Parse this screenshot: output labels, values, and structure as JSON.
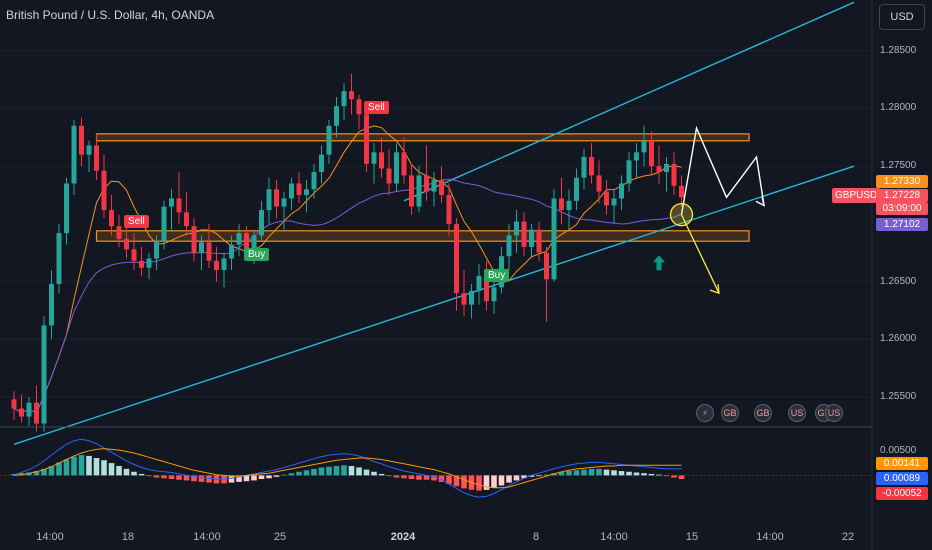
{
  "header": {
    "title": "British Pound / U.S. Dollar, 4h, OANDA",
    "currency": "USD"
  },
  "colors": {
    "background": "#131722",
    "up": "#26a69a",
    "down": "#f23645",
    "channel": "#29b6d6",
    "zone": "#f7931a",
    "ma_fast": "#f7931a",
    "ma_slow": "#7b5cd6",
    "macd_line": "#2962ff",
    "signal_line": "#ff9800"
  },
  "chart_data": {
    "type": "candlestick",
    "title": "British Pound / U.S. Dollar, 4h, OANDA",
    "symbol": "GBPUSD",
    "interval": "4h",
    "price_axis": {
      "ticks": [
        "1.28500",
        "1.28000",
        "1.27500",
        "1.26500",
        "1.26000",
        "1.25500"
      ],
      "ylim": [
        1.2524,
        1.2894
      ]
    },
    "time_axis": {
      "ticks": [
        {
          "label": "14:00",
          "bold": false
        },
        {
          "label": "18",
          "bold": false
        },
        {
          "label": "14:00",
          "bold": false
        },
        {
          "label": "25",
          "bold": false
        },
        {
          "label": "2024",
          "bold": true
        },
        {
          "label": "8",
          "bold": false
        },
        {
          "label": "14:00",
          "bold": false
        },
        {
          "label": "15",
          "bold": false
        },
        {
          "label": "14:00",
          "bold": false
        },
        {
          "label": "22",
          "bold": false
        }
      ]
    },
    "price_labels": {
      "symbol": "GBPUSD",
      "fast_ma": "1.27330",
      "last": "1.27228",
      "countdown": "03:09:00",
      "slow_ma": "1.27102"
    },
    "zones": [
      {
        "from": 1.2772,
        "to": 1.2778
      },
      {
        "from": 1.2685,
        "to": 1.2694
      }
    ],
    "channel": {
      "lower": [
        [
          0,
          1.2509
        ],
        [
          112,
          1.275
        ]
      ],
      "upper": [
        [
          52,
          1.272
        ],
        [
          112,
          1.2892
        ]
      ]
    },
    "signals": [
      {
        "label": "Sell",
        "index": 16,
        "price": 1.2702
      },
      {
        "label": "Buy",
        "index": 32,
        "price": 1.2673
      },
      {
        "label": "Sell",
        "index": 48,
        "price": 1.28
      },
      {
        "label": "Buy",
        "index": 64,
        "price": 1.2655
      }
    ],
    "projection": {
      "main": [
        [
          89,
          1.2708
        ],
        [
          91,
          1.2783
        ],
        [
          95,
          1.2723
        ],
        [
          99,
          1.2758
        ],
        [
          100,
          1.2716
        ]
      ],
      "alternate": [
        [
          89,
          1.2708
        ],
        [
          94,
          1.264
        ]
      ]
    },
    "events": [
      "⚡",
      "GB",
      "GB",
      "US",
      "GB",
      "US"
    ],
    "candles": [
      [
        1.2548,
        1.2555,
        1.253,
        1.254
      ],
      [
        1.254,
        1.2552,
        1.2528,
        1.2533
      ],
      [
        1.2533,
        1.255,
        1.2525,
        1.2545
      ],
      [
        1.2545,
        1.256,
        1.252,
        1.2527
      ],
      [
        1.2527,
        1.262,
        1.252,
        1.2612
      ],
      [
        1.2612,
        1.266,
        1.26,
        1.2648
      ],
      [
        1.2648,
        1.27,
        1.264,
        1.2692
      ],
      [
        1.2692,
        1.274,
        1.2682,
        1.2735
      ],
      [
        1.2735,
        1.279,
        1.2725,
        1.2785
      ],
      [
        1.2785,
        1.2792,
        1.275,
        1.276
      ],
      [
        1.276,
        1.2772,
        1.2745,
        1.2768
      ],
      [
        1.2768,
        1.2778,
        1.2738,
        1.2746
      ],
      [
        1.2746,
        1.276,
        1.2705,
        1.2712
      ],
      [
        1.2712,
        1.2725,
        1.269,
        1.2698
      ],
      [
        1.2698,
        1.2708,
        1.268,
        1.2687
      ],
      [
        1.2687,
        1.27,
        1.267,
        1.2678
      ],
      [
        1.2678,
        1.2692,
        1.266,
        1.2668
      ],
      [
        1.2668,
        1.268,
        1.2655,
        1.2662
      ],
      [
        1.2662,
        1.2675,
        1.2652,
        1.267
      ],
      [
        1.267,
        1.269,
        1.266,
        1.2685
      ],
      [
        1.2685,
        1.272,
        1.2678,
        1.2715
      ],
      [
        1.2715,
        1.273,
        1.2695,
        1.2722
      ],
      [
        1.2722,
        1.2745,
        1.27,
        1.271
      ],
      [
        1.271,
        1.2728,
        1.269,
        1.2698
      ],
      [
        1.2698,
        1.2705,
        1.2668,
        1.2675
      ],
      [
        1.2675,
        1.269,
        1.266,
        1.2684
      ],
      [
        1.2684,
        1.27,
        1.2662,
        1.2668
      ],
      [
        1.2668,
        1.268,
        1.265,
        1.266
      ],
      [
        1.266,
        1.2675,
        1.2645,
        1.267
      ],
      [
        1.267,
        1.269,
        1.266,
        1.2682
      ],
      [
        1.2682,
        1.27,
        1.2672,
        1.2692
      ],
      [
        1.2692,
        1.2698,
        1.2668,
        1.2675
      ],
      [
        1.2675,
        1.2695,
        1.2665,
        1.269
      ],
      [
        1.269,
        1.272,
        1.2685,
        1.2712
      ],
      [
        1.2712,
        1.274,
        1.27,
        1.273
      ],
      [
        1.273,
        1.2738,
        1.2705,
        1.2715
      ],
      [
        1.2715,
        1.2728,
        1.2695,
        1.2722
      ],
      [
        1.2722,
        1.274,
        1.2712,
        1.2735
      ],
      [
        1.2735,
        1.2745,
        1.2718,
        1.2725
      ],
      [
        1.2725,
        1.2738,
        1.271,
        1.273
      ],
      [
        1.273,
        1.2752,
        1.2722,
        1.2745
      ],
      [
        1.2745,
        1.2768,
        1.2735,
        1.276
      ],
      [
        1.276,
        1.279,
        1.2752,
        1.2785
      ],
      [
        1.2785,
        1.281,
        1.2775,
        1.2802
      ],
      [
        1.2802,
        1.2822,
        1.279,
        1.2815
      ],
      [
        1.2815,
        1.283,
        1.2795,
        1.2808
      ],
      [
        1.2808,
        1.2812,
        1.2782,
        1.2795
      ],
      [
        1.2795,
        1.28,
        1.2745,
        1.2752
      ],
      [
        1.2752,
        1.277,
        1.2735,
        1.2762
      ],
      [
        1.2762,
        1.2775,
        1.274,
        1.2748
      ],
      [
        1.2748,
        1.2765,
        1.2725,
        1.2735
      ],
      [
        1.2735,
        1.277,
        1.2728,
        1.2762
      ],
      [
        1.2762,
        1.2775,
        1.2735,
        1.2742
      ],
      [
        1.2742,
        1.2752,
        1.2708,
        1.2715
      ],
      [
        1.2715,
        1.275,
        1.271,
        1.2742
      ],
      [
        1.2742,
        1.2768,
        1.272,
        1.2728
      ],
      [
        1.2728,
        1.2745,
        1.2715,
        1.2738
      ],
      [
        1.2738,
        1.275,
        1.2718,
        1.2725
      ],
      [
        1.2725,
        1.2735,
        1.269,
        1.27
      ],
      [
        1.27,
        1.2705,
        1.2625,
        1.264
      ],
      [
        1.264,
        1.266,
        1.262,
        1.263
      ],
      [
        1.263,
        1.2648,
        1.2618,
        1.2642
      ],
      [
        1.2642,
        1.2665,
        1.263,
        1.2655
      ],
      [
        1.2655,
        1.2668,
        1.2625,
        1.2633
      ],
      [
        1.2633,
        1.265,
        1.2622,
        1.2645
      ],
      [
        1.2645,
        1.268,
        1.264,
        1.2672
      ],
      [
        1.2672,
        1.27,
        1.266,
        1.269
      ],
      [
        1.269,
        1.2712,
        1.2675,
        1.2702
      ],
      [
        1.2702,
        1.271,
        1.2672,
        1.268
      ],
      [
        1.268,
        1.27,
        1.267,
        1.2695
      ],
      [
        1.2695,
        1.2702,
        1.2668,
        1.2675
      ],
      [
        1.2675,
        1.268,
        1.2615,
        1.2652
      ],
      [
        1.2652,
        1.273,
        1.265,
        1.2722
      ],
      [
        1.2722,
        1.274,
        1.27,
        1.2712
      ],
      [
        1.2712,
        1.273,
        1.2695,
        1.272
      ],
      [
        1.272,
        1.2748,
        1.2712,
        1.274
      ],
      [
        1.274,
        1.2765,
        1.273,
        1.2758
      ],
      [
        1.2758,
        1.277,
        1.2735,
        1.2742
      ],
      [
        1.2742,
        1.2755,
        1.2718,
        1.2728
      ],
      [
        1.2728,
        1.2738,
        1.2708,
        1.2716
      ],
      [
        1.2716,
        1.273,
        1.27,
        1.2722
      ],
      [
        1.2722,
        1.2742,
        1.2712,
        1.2735
      ],
      [
        1.2735,
        1.2762,
        1.2728,
        1.2755
      ],
      [
        1.2755,
        1.277,
        1.274,
        1.2762
      ],
      [
        1.2762,
        1.2785,
        1.275,
        1.2772
      ],
      [
        1.2772,
        1.278,
        1.2742,
        1.275
      ],
      [
        1.275,
        1.2768,
        1.2735,
        1.2745
      ],
      [
        1.2745,
        1.2758,
        1.2728,
        1.2752
      ],
      [
        1.2752,
        1.2762,
        1.2725,
        1.2733
      ],
      [
        1.2733,
        1.2742,
        1.2715,
        1.2723
      ]
    ],
    "macd": {
      "ticks": [
        "0.00500",
        "-0.00052"
      ],
      "labels": {
        "signal": "0.00141",
        "macd": "0.00089",
        "histogram": "-0.00052"
      },
      "ylim": [
        -0.007,
        0.006
      ],
      "histogram": [
        0.0002,
        0.0003,
        0.0004,
        0.0006,
        0.0009,
        0.0013,
        0.0018,
        0.0022,
        0.0026,
        0.0028,
        0.0027,
        0.0024,
        0.0021,
        0.0017,
        0.0013,
        0.0009,
        0.0005,
        0.0002,
        -0.0001,
        -0.0003,
        -0.0004,
        -0.0005,
        -0.0006,
        -0.0007,
        -0.0008,
        -0.0009,
        -0.001,
        -0.0011,
        -0.0011,
        -0.001,
        -0.0009,
        -0.0008,
        -0.0007,
        -0.0005,
        -0.0004,
        -0.0002,
        0.0001,
        0.0003,
        0.0005,
        0.0007,
        0.0009,
        0.0011,
        0.0012,
        0.0013,
        0.0014,
        0.0013,
        0.0011,
        0.0008,
        0.0005,
        0.0002,
        -0.0001,
        -0.0003,
        -0.0004,
        -0.0005,
        -0.0006,
        -0.0006,
        -0.0007,
        -0.0009,
        -0.0012,
        -0.0015,
        -0.0018,
        -0.002,
        -0.0021,
        -0.002,
        -0.0017,
        -0.0014,
        -0.001,
        -0.0007,
        -0.0004,
        -0.0002,
        -0.0001,
        0.0001,
        0.0003,
        0.0005,
        0.0006,
        0.0007,
        0.0008,
        0.0009,
        0.0009,
        0.0008,
        0.0007,
        0.0006,
        0.0005,
        0.0004,
        0.0003,
        0.0002,
        0.0001,
        -0.0001,
        -0.0003,
        -0.0005
      ],
      "macd_line": [
        0.0001,
        0.0004,
        0.0008,
        0.0013,
        0.002,
        0.0028,
        0.0036,
        0.0043,
        0.0048,
        0.005,
        0.0048,
        0.0044,
        0.0038,
        0.0032,
        0.0026,
        0.002,
        0.0015,
        0.0011,
        0.0008,
        0.0006,
        0.0005,
        0.0004,
        0.0002,
        0.0,
        -0.0002,
        -0.0003,
        -0.0004,
        -0.0005,
        -0.0005,
        -0.0004,
        -0.0002,
        0.0,
        0.0002,
        0.0004,
        0.0006,
        0.0008,
        0.0011,
        0.0014,
        0.0017,
        0.002,
        0.0023,
        0.0026,
        0.0028,
        0.0029,
        0.003,
        0.0029,
        0.0027,
        0.0023,
        0.0019,
        0.0016,
        0.0012,
        0.0009,
        0.0006,
        0.0004,
        0.0002,
        0.0,
        -0.0002,
        -0.0006,
        -0.0012,
        -0.0018,
        -0.0024,
        -0.0028,
        -0.003,
        -0.0029,
        -0.0025,
        -0.002,
        -0.0014,
        -0.0009,
        -0.0004,
        0.0,
        0.0003,
        0.0006,
        0.0009,
        0.0012,
        0.0014,
        0.0016,
        0.0017,
        0.0018,
        0.0018,
        0.0017,
        0.0016,
        0.0015,
        0.0014,
        0.0013,
        0.0012,
        0.0011,
        0.001,
        0.0009,
        0.0009,
        0.0009
      ],
      "signal_line": [
        0.0,
        0.0001,
        0.0003,
        0.0005,
        0.0008,
        0.0012,
        0.0017,
        0.0022,
        0.0027,
        0.0031,
        0.0034,
        0.0036,
        0.0037,
        0.0036,
        0.0035,
        0.0033,
        0.0031,
        0.0028,
        0.0025,
        0.0022,
        0.0019,
        0.0016,
        0.0013,
        0.001,
        0.0007,
        0.0005,
        0.0003,
        0.0001,
        0.0,
        -0.0001,
        -0.0001,
        0.0,
        0.0001,
        0.0002,
        0.0003,
        0.0005,
        0.0007,
        0.0009,
        0.0011,
        0.0013,
        0.0015,
        0.0017,
        0.0019,
        0.0021,
        0.0022,
        0.0023,
        0.0024,
        0.0024,
        0.0023,
        0.0022,
        0.002,
        0.0018,
        0.0016,
        0.0014,
        0.0012,
        0.001,
        0.0008,
        0.0005,
        0.0002,
        -0.0002,
        -0.0006,
        -0.001,
        -0.0013,
        -0.0016,
        -0.0017,
        -0.0017,
        -0.0016,
        -0.0013,
        -0.001,
        -0.0007,
        -0.0004,
        -0.0001,
        0.0002,
        0.0005,
        0.0007,
        0.0009,
        0.001,
        0.0011,
        0.0012,
        0.0013,
        0.0013,
        0.0014,
        0.0014,
        0.0014,
        0.0014,
        0.0014,
        0.0014,
        0.0014,
        0.0014,
        0.0014
      ]
    }
  }
}
